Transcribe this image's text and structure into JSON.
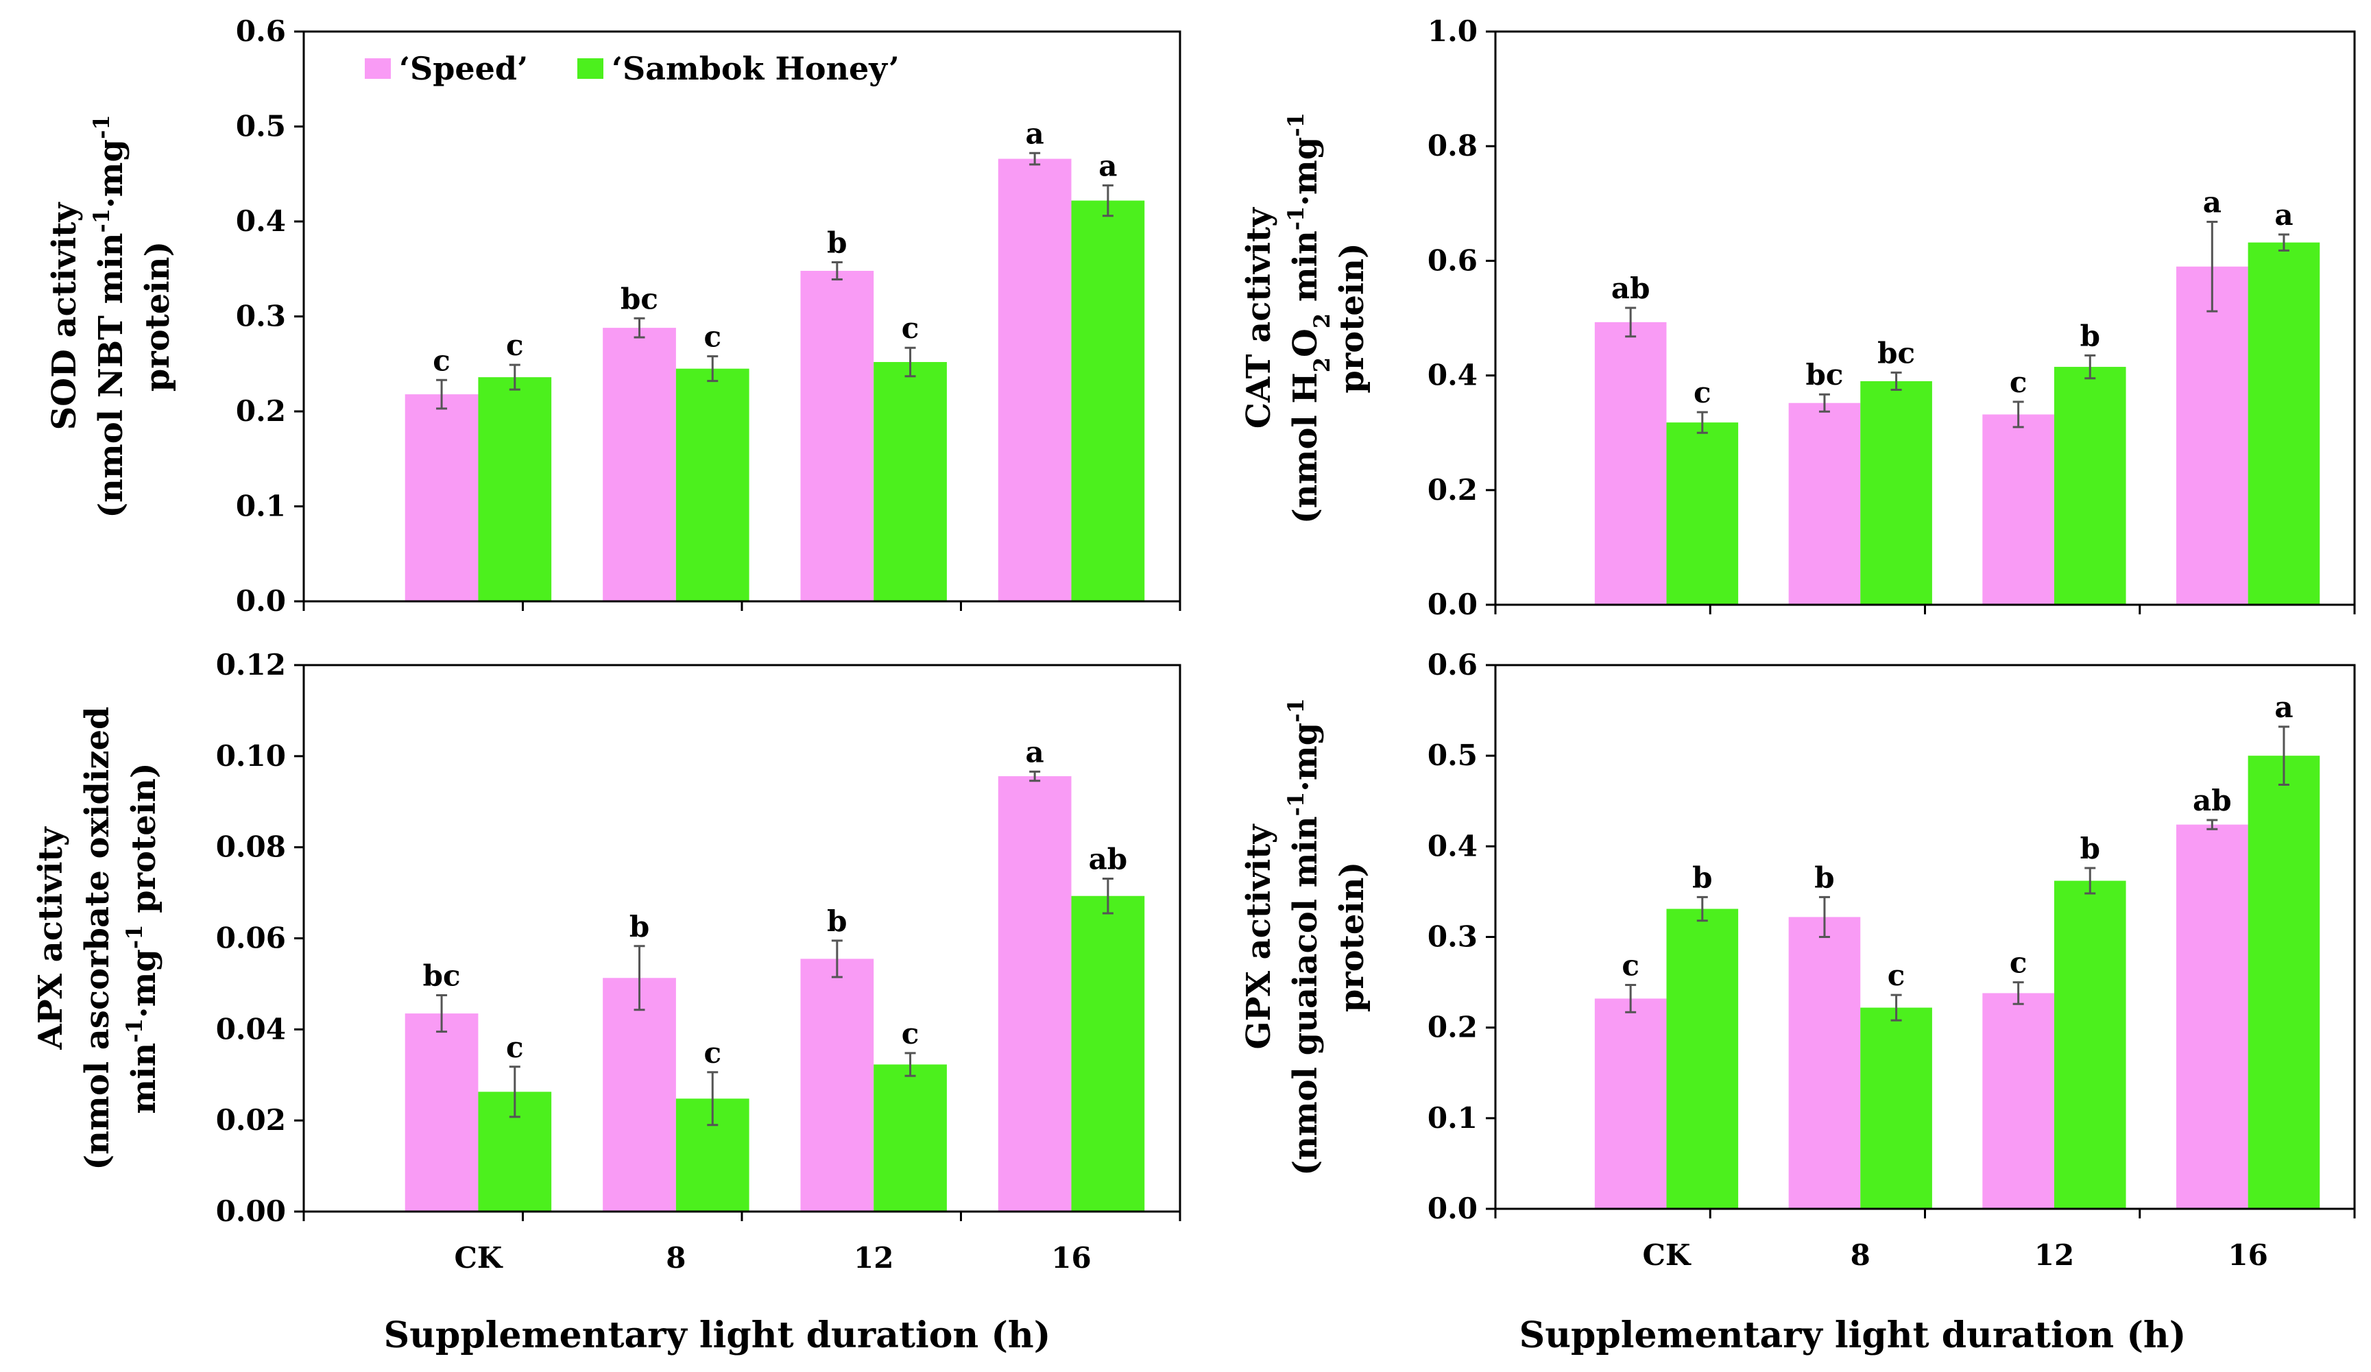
{
  "colors": {
    "speed": "#F99BF5",
    "sambok": "#4CF01D",
    "axis": "#000000",
    "error": "#555555"
  },
  "legend": {
    "speed": "‘Speed’",
    "sambok": "‘Sambok Honey’"
  },
  "x_axis_title": "Supplementary light duration (h)",
  "chart_data": [
    {
      "type": "bar",
      "categories": [
        "CK",
        "8",
        "12",
        "16"
      ],
      "ylim": [
        0,
        0.6
      ],
      "yticks": [
        "0.0",
        "0.1",
        "0.2",
        "0.3",
        "0.4",
        "0.5",
        "0.6"
      ],
      "ylabel_lines": [
        "SOD activity",
        "(nmol NBT min-1·mg-1",
        "protein)"
      ],
      "series": [
        {
          "name": "‘Speed’",
          "values": [
            0.218,
            0.288,
            0.348,
            0.466
          ],
          "errors": [
            0.015,
            0.01,
            0.009,
            0.006
          ],
          "letters": [
            "c",
            "bc",
            "b",
            "a"
          ]
        },
        {
          "name": "‘Sambok Honey’",
          "values": [
            0.236,
            0.245,
            0.252,
            0.422
          ],
          "errors": [
            0.013,
            0.013,
            0.015,
            0.016
          ],
          "letters": [
            "c",
            "c",
            "c",
            "a"
          ]
        }
      ]
    },
    {
      "type": "bar",
      "categories": [
        "CK",
        "8",
        "12",
        "16"
      ],
      "ylim": [
        0,
        1.0
      ],
      "yticks": [
        "0.0",
        "0.2",
        "0.4",
        "0.6",
        "0.8",
        "1.0"
      ],
      "ylabel_lines": [
        "CAT activity",
        "(nmol H2O2 min-1·mg-1",
        "protein)"
      ],
      "series": [
        {
          "name": "‘Speed’",
          "values": [
            0.493,
            0.352,
            0.332,
            0.59
          ],
          "errors": [
            0.025,
            0.015,
            0.022,
            0.078
          ],
          "letters": [
            "ab",
            "bc",
            "c",
            "a"
          ]
        },
        {
          "name": "‘Sambok Honey’",
          "values": [
            0.318,
            0.39,
            0.415,
            0.632
          ],
          "errors": [
            0.018,
            0.015,
            0.02,
            0.014
          ],
          "letters": [
            "c",
            "bc",
            "b",
            "a"
          ]
        }
      ]
    },
    {
      "type": "bar",
      "categories": [
        "CK",
        "8",
        "12",
        "16"
      ],
      "ylim": [
        0,
        0.12
      ],
      "yticks": [
        "0.00",
        "0.02",
        "0.04",
        "0.06",
        "0.08",
        "0.10",
        "0.12"
      ],
      "ylabel_lines": [
        "APX activity",
        "(nmol ascorbate oxidized",
        "min-1·mg-1 protein)"
      ],
      "series": [
        {
          "name": "‘Speed’",
          "values": [
            0.0435,
            0.0513,
            0.0555,
            0.0956
          ],
          "errors": [
            0.004,
            0.007,
            0.004,
            0.001
          ],
          "letters": [
            "bc",
            "b",
            "b",
            "a"
          ]
        },
        {
          "name": "‘Sambok Honey’",
          "values": [
            0.0263,
            0.0248,
            0.0323,
            0.0693
          ],
          "errors": [
            0.0055,
            0.0058,
            0.0025,
            0.0038
          ],
          "letters": [
            "c",
            "c",
            "c",
            "ab"
          ]
        }
      ]
    },
    {
      "type": "bar",
      "categories": [
        "CK",
        "8",
        "12",
        "16"
      ],
      "ylim": [
        0,
        0.6
      ],
      "yticks": [
        "0.0",
        "0.1",
        "0.2",
        "0.3",
        "0.4",
        "0.5",
        "0.6"
      ],
      "ylabel_lines": [
        "GPX activity",
        "(nmol guaiacol min-1·mg-1",
        "protein)"
      ],
      "series": [
        {
          "name": "‘Speed’",
          "values": [
            0.232,
            0.322,
            0.238,
            0.424
          ],
          "errors": [
            0.015,
            0.022,
            0.012,
            0.005
          ],
          "letters": [
            "c",
            "b",
            "c",
            "ab"
          ]
        },
        {
          "name": "‘Sambok Honey’",
          "values": [
            0.331,
            0.222,
            0.362,
            0.5
          ],
          "errors": [
            0.013,
            0.014,
            0.014,
            0.032
          ],
          "letters": [
            "b",
            "c",
            "b",
            "a"
          ]
        }
      ]
    }
  ]
}
